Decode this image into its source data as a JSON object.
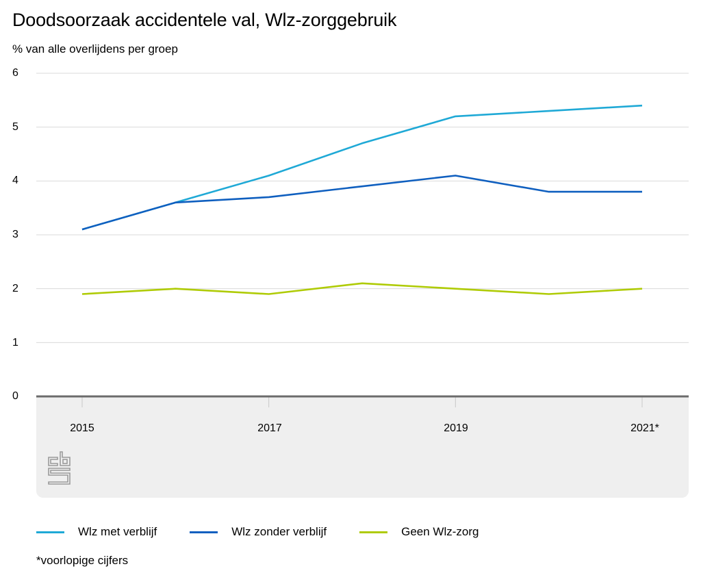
{
  "header": {
    "title": "Doodsoorzaak accidentele val, Wlz-zorggebruik",
    "subtitle": "% van alle overlijdens per groep"
  },
  "axis": {
    "y_ticks": [
      "6",
      "5",
      "4",
      "3",
      "2",
      "1",
      "0"
    ],
    "x_ticks": [
      "2015",
      "2017",
      "2019",
      "2021*"
    ]
  },
  "legend": {
    "items": [
      {
        "label": "Wlz met verblijf",
        "color": "#1fa9d6"
      },
      {
        "label": "Wlz zonder verblijf",
        "color": "#0f5fbf"
      },
      {
        "label": "Geen Wlz-zorg",
        "color": "#afcb05"
      }
    ]
  },
  "footnote": "*voorlopige cijfers",
  "logo": "cbs-logo-icon",
  "chart_data": {
    "type": "line",
    "title": "Doodsoorzaak accidentele val, Wlz-zorggebruik",
    "subtitle": "% van alle overlijdens per groep",
    "xlabel": "",
    "ylabel": "% van alle overlijdens per groep",
    "x": [
      "2015",
      "2016",
      "2017",
      "2018",
      "2019",
      "2020",
      "2021*"
    ],
    "x_tick_labels": [
      "2015",
      "2017",
      "2019",
      "2021*"
    ],
    "ylim": [
      0,
      6
    ],
    "y_ticks": [
      0,
      1,
      2,
      3,
      4,
      5,
      6
    ],
    "grid": true,
    "legend_position": "bottom",
    "series": [
      {
        "name": "Wlz met verblijf",
        "color": "#1fa9d6",
        "values": [
          3.1,
          3.6,
          4.1,
          4.7,
          5.2,
          5.3,
          5.4
        ]
      },
      {
        "name": "Wlz zonder verblijf",
        "color": "#0f5fbf",
        "values": [
          3.1,
          3.6,
          3.7,
          3.9,
          4.1,
          3.8,
          3.8
        ]
      },
      {
        "name": "Geen Wlz-zorg",
        "color": "#afcb05",
        "values": [
          1.9,
          2.0,
          1.9,
          2.1,
          2.0,
          1.9,
          2.0
        ]
      }
    ],
    "annotations": [
      "*voorlopige cijfers"
    ]
  }
}
